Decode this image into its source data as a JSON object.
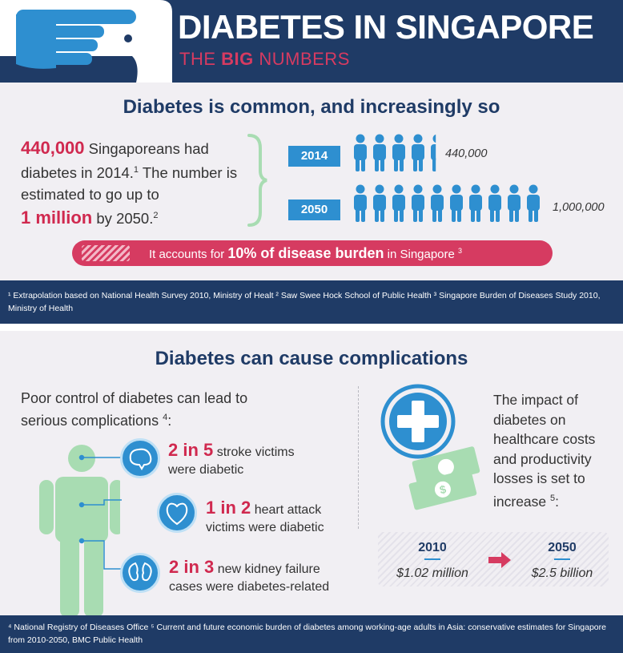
{
  "header": {
    "title": "DIABETES IN SINGAPORE",
    "subtitle_prefix": "THE ",
    "subtitle_bold": "BIG",
    "subtitle_suffix": " NUMBERS",
    "icon": "pointing-hand-icon"
  },
  "common": {
    "title": "Diabetes is common, and increasingly so",
    "stat_big_1": "440,000",
    "stat_text_1": " Singaporeans had diabetes in 2014.",
    "stat_ref_1": "1",
    "stat_text_2": " The number is estimated to go up to",
    "stat_big_2": "1 million",
    "stat_text_3": " by 2050.",
    "stat_ref_2": "2",
    "rows": [
      {
        "year": "2014",
        "value": "440,000",
        "people": 4.4
      },
      {
        "year": "2050",
        "value": "1,000,000",
        "people": 10
      }
    ],
    "burden_prefix": "It accounts for ",
    "burden_bold": "10% of disease burden",
    "burden_suffix": " in Singapore",
    "burden_ref": "3"
  },
  "footnotes_1": "¹ Extrapolation based on National Health Survey 2010, Ministry of Healt ² Saw Swee Hock School of Public Health ³ Singapore Burden of Diseases Study 2010, Ministry of Health",
  "complications": {
    "title": "Diabetes can cause complications",
    "intro": "Poor control of diabetes can lead to serious complications",
    "intro_ref": "4",
    "items": [
      {
        "icon": "brain-icon",
        "big": "2 in 5",
        "line1": " stroke victims",
        "line2": "were diabetic"
      },
      {
        "icon": "heart-icon",
        "big": "1 in 2",
        "line1": " heart attack",
        "line2": "victims were diabetic"
      },
      {
        "icon": "kidney-icon",
        "big": "2 in 3",
        "line1": " new kidney failure",
        "line2": "cases were diabetes-related"
      }
    ],
    "impact_text": "The impact of diabetes on healthcare costs and productivity losses is set to increase",
    "impact_ref": "5",
    "cost_from_year": "2010",
    "cost_from_value": "$1.02 million",
    "cost_to_year": "2050",
    "cost_to_value": "$2.5 billion"
  },
  "footnotes_2": "⁴ National Registry of Diseases Office ⁵ Current and future economic burden of diabetes among working-age adults in Asia: conservative estimates for Singapore from 2010-2050, BMC Public Health",
  "colors": {
    "navy": "#1f3b66",
    "pink": "#d63b61",
    "blue": "#2e8fd0",
    "green": "#a8dcb2"
  }
}
